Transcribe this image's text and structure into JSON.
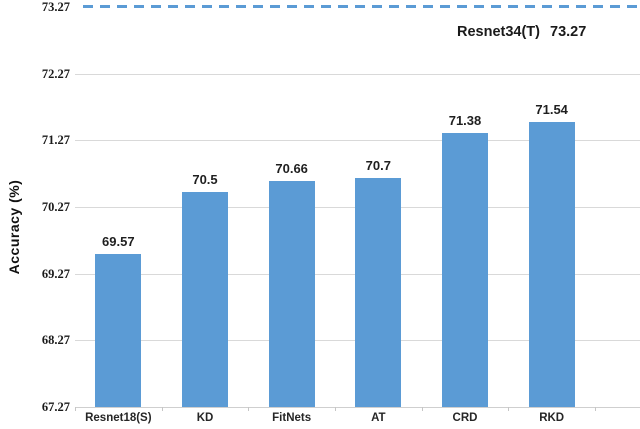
{
  "chart_data": {
    "type": "bar",
    "title": "",
    "xlabel": "",
    "ylabel": "Accuracy (%)",
    "categories": [
      "Resnet18(S)",
      "KD",
      "FitNets",
      "AT",
      "CRD",
      "RKD"
    ],
    "values": [
      69.57,
      70.5,
      70.66,
      70.7,
      71.38,
      71.54
    ],
    "value_labels": [
      "69.57",
      "70.5",
      "70.66",
      "70.7",
      "71.38",
      "71.54"
    ],
    "yticks": [
      "67.27",
      "68.27",
      "69.27",
      "70.27",
      "71.27",
      "72.27",
      "73.27"
    ],
    "ylim": [
      67.27,
      73.27
    ],
    "grid": true,
    "legend": "none",
    "teacher_line": {
      "label": "Resnet34(T)",
      "value_display": "73.27",
      "value": 73.27,
      "style": "dashed"
    },
    "colors": {
      "bar": "#5b9bd5",
      "dashed_line": "#5b9bd5",
      "gridline": "#d9d9d9",
      "text": "#1a1a1a"
    }
  }
}
